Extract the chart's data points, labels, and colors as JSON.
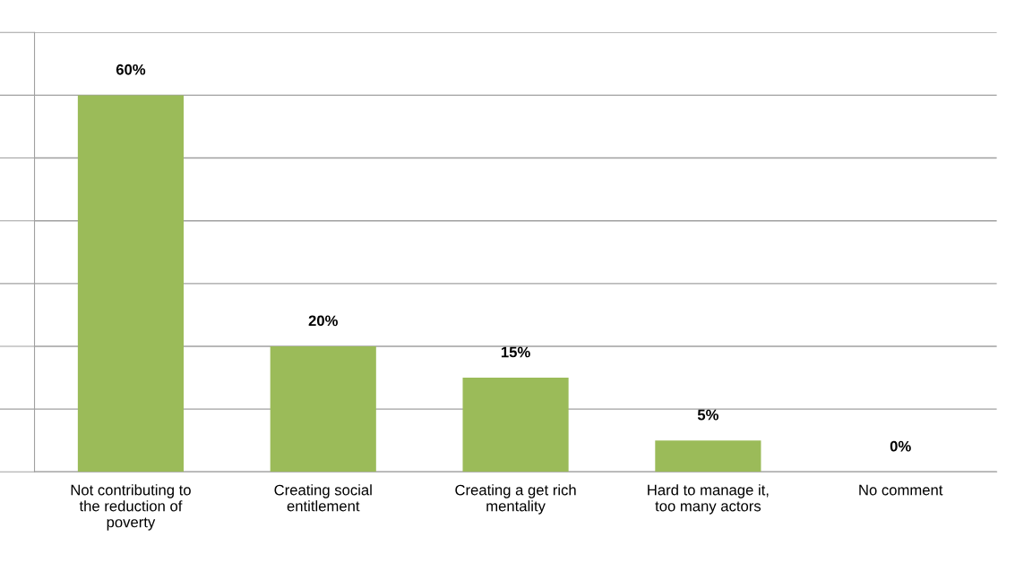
{
  "chart_data": {
    "type": "bar",
    "categories": [
      "Not contributing to\nthe reduction of\npoverty",
      "Creating social\nentitlement",
      "Creating a get rich\nmentality",
      "Hard to manage it,\ntoo many actors",
      "No comment"
    ],
    "values": [
      60,
      20,
      15,
      5,
      0
    ],
    "value_labels": [
      "60%",
      "20%",
      "15%",
      "5%",
      "0%"
    ],
    "color": "#9bbb59",
    "ylim": [
      0,
      70
    ],
    "yticks": [
      {
        "value": 0,
        "label": null
      },
      {
        "value": 10,
        "label": null
      },
      {
        "value": 20,
        "label": null
      },
      {
        "value": 30,
        "label": null
      },
      {
        "value": 40,
        "label": null
      },
      {
        "value": 50,
        "label": null
      },
      {
        "value": 60,
        "label": null
      },
      {
        "value": 70,
        "label": null
      }
    ],
    "tick_labels": "x",
    "grid": "y"
  }
}
